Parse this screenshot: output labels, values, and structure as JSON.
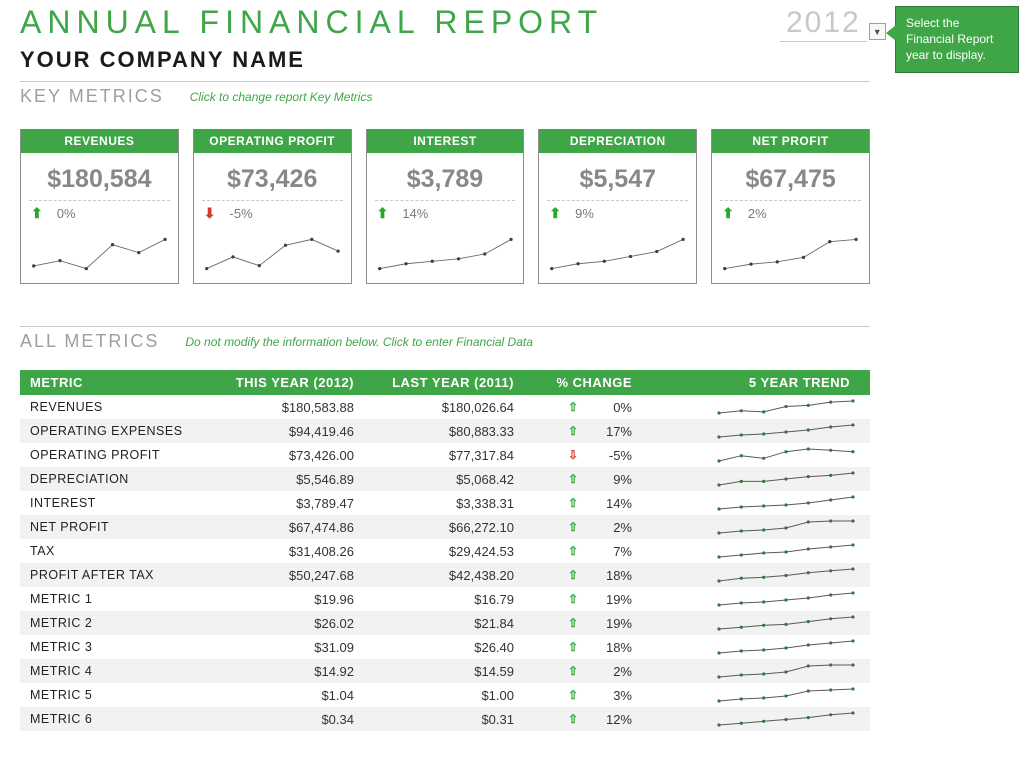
{
  "colors": {
    "primary": "#3fa648",
    "muted_text": "#9e9e9e",
    "value_text": "#888888",
    "border": "#8e8e8e",
    "spark_line": "#6c6c6c",
    "spark_dot": "#3e3e3e",
    "up": "#27a82a",
    "down": "#d43a2e",
    "row_alt": "#f2f2f2"
  },
  "header": {
    "title": "ANNUAL FINANCIAL REPORT",
    "company": "YOUR COMPANY NAME",
    "year_selected": "2012",
    "callout": "Select the Financial Report year to display."
  },
  "key_metrics": {
    "label": "KEY METRICS",
    "hint": "Click to change report Key Metrics",
    "cards": [
      {
        "title": "REVENUES",
        "value": "$180,584",
        "direction": "up",
        "pct": "0%",
        "spark": [
          4,
          6,
          3,
          12,
          9,
          14
        ]
      },
      {
        "title": "OPERATING PROFIT",
        "value": "$73,426",
        "direction": "down",
        "pct": "-5%",
        "spark": [
          6,
          10,
          7,
          14,
          16,
          12
        ]
      },
      {
        "title": "INTEREST",
        "value": "$3,789",
        "direction": "up",
        "pct": "14%",
        "spark": [
          3,
          5,
          6,
          7,
          9,
          15
        ]
      },
      {
        "title": "DEPRECIATION",
        "value": "$5,547",
        "direction": "up",
        "pct": "9%",
        "spark": [
          4,
          6,
          7,
          9,
          11,
          16
        ]
      },
      {
        "title": "NET PROFIT",
        "value": "$67,475",
        "direction": "up",
        "pct": "2%",
        "spark": [
          3,
          5,
          6,
          8,
          15,
          16
        ]
      }
    ]
  },
  "all_metrics": {
    "label": "ALL METRICS",
    "hint": "Do not modify the information below. Click to enter Financial Data",
    "columns": {
      "metric": "METRIC",
      "this_year": "THIS YEAR (2012)",
      "last_year": "LAST YEAR (2011)",
      "change": "% CHANGE",
      "trend": "5 YEAR TREND"
    },
    "rows": [
      {
        "name": "REVENUES",
        "this": "$180,583.88",
        "last": "$180,026.64",
        "dir": "up",
        "pct": "0%",
        "spark": [
          4,
          6,
          5,
          10,
          11,
          14,
          15
        ]
      },
      {
        "name": "OPERATING EXPENSES",
        "this": "$94,419.46",
        "last": "$80,883.33",
        "dir": "up",
        "pct": "17%",
        "spark": [
          3,
          5,
          6,
          8,
          10,
          13,
          15
        ]
      },
      {
        "name": "OPERATING PROFIT",
        "this": "$73,426.00",
        "last": "$77,317.84",
        "dir": "down",
        "pct": "-5%",
        "spark": [
          5,
          9,
          7,
          12,
          14,
          13,
          12
        ]
      },
      {
        "name": "DEPRECIATION",
        "this": "$5,546.89",
        "last": "$5,068.42",
        "dir": "up",
        "pct": "9%",
        "spark": [
          4,
          7,
          7,
          9,
          11,
          12,
          14
        ]
      },
      {
        "name": "INTEREST",
        "this": "$3,789.47",
        "last": "$3,338.31",
        "dir": "up",
        "pct": "14%",
        "spark": [
          3,
          5,
          6,
          7,
          9,
          12,
          15
        ]
      },
      {
        "name": "NET PROFIT",
        "this": "$67,474.86",
        "last": "$66,272.10",
        "dir": "up",
        "pct": "2%",
        "spark": [
          3,
          5,
          6,
          8,
          14,
          15,
          15
        ]
      },
      {
        "name": "TAX",
        "this": "$31,408.26",
        "last": "$29,424.53",
        "dir": "up",
        "pct": "7%",
        "spark": [
          3,
          5,
          7,
          8,
          11,
          13,
          15
        ]
      },
      {
        "name": "PROFIT AFTER TAX",
        "this": "$50,247.68",
        "last": "$42,438.20",
        "dir": "up",
        "pct": "18%",
        "spark": [
          2,
          5,
          6,
          8,
          11,
          13,
          15
        ]
      },
      {
        "name": "METRIC 1",
        "this": "$19.96",
        "last": "$16.79",
        "dir": "up",
        "pct": "19%",
        "spark": [
          3,
          5,
          6,
          8,
          10,
          13,
          15
        ]
      },
      {
        "name": "METRIC 2",
        "this": "$26.02",
        "last": "$21.84",
        "dir": "up",
        "pct": "19%",
        "spark": [
          2,
          4,
          6,
          7,
          10,
          13,
          15
        ]
      },
      {
        "name": "METRIC 3",
        "this": "$31.09",
        "last": "$26.40",
        "dir": "up",
        "pct": "18%",
        "spark": [
          3,
          5,
          6,
          8,
          11,
          13,
          15
        ]
      },
      {
        "name": "METRIC 4",
        "this": "$14.92",
        "last": "$14.59",
        "dir": "up",
        "pct": "2%",
        "spark": [
          3,
          5,
          6,
          8,
          14,
          15,
          15
        ]
      },
      {
        "name": "METRIC 5",
        "this": "$1.04",
        "last": "$1.00",
        "dir": "up",
        "pct": "3%",
        "spark": [
          3,
          5,
          6,
          8,
          13,
          14,
          15
        ]
      },
      {
        "name": "METRIC 6",
        "this": "$0.34",
        "last": "$0.31",
        "dir": "up",
        "pct": "12%",
        "spark": [
          2,
          4,
          6,
          8,
          10,
          13,
          15
        ]
      }
    ]
  }
}
